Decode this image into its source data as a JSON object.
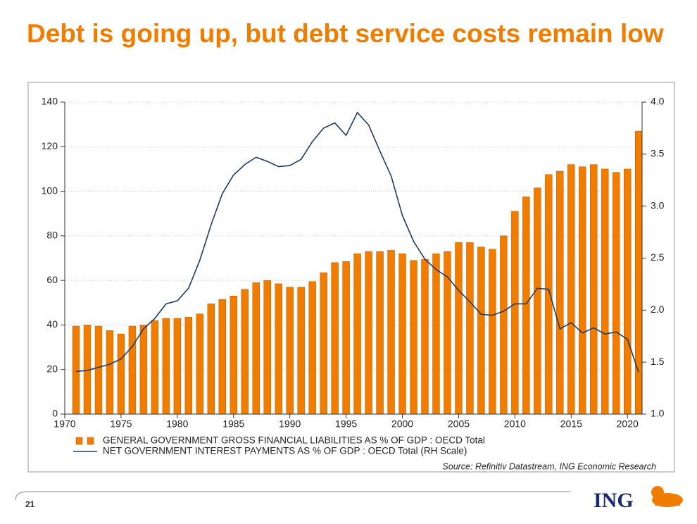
{
  "chart_data": {
    "type": "bar-line",
    "title": "Debt is going up, but debt service costs remain low",
    "source": "Source: Refinitiv Datastream, ING Economic Research",
    "x": [
      1971,
      1972,
      1973,
      1974,
      1975,
      1976,
      1977,
      1978,
      1979,
      1980,
      1981,
      1982,
      1983,
      1984,
      1985,
      1986,
      1987,
      1988,
      1989,
      1990,
      1991,
      1992,
      1993,
      1994,
      1995,
      1996,
      1997,
      1998,
      1999,
      2000,
      2001,
      2002,
      2003,
      2004,
      2005,
      2006,
      2007,
      2008,
      2009,
      2010,
      2011,
      2012,
      2013,
      2014,
      2015,
      2016,
      2017,
      2018,
      2019,
      2020,
      2021
    ],
    "series": [
      {
        "name": "GENERAL GOVERNMENT GROSS FINANCIAL LIABILITIES AS % OF GDP : OECD Total",
        "color": "#f07d00",
        "type": "bar",
        "values": [
          39.5,
          40,
          39.5,
          37.5,
          36,
          39.5,
          40,
          42,
          43,
          43,
          43.5,
          45,
          49.5,
          51.5,
          53,
          56,
          59,
          60,
          58.5,
          57,
          57,
          59.5,
          63.5,
          68,
          68.5,
          72,
          73,
          73,
          73.5,
          72,
          69,
          69.5,
          72,
          73,
          77,
          77,
          75,
          74,
          80,
          91,
          97.5,
          101.5,
          107.5,
          109,
          112,
          111,
          112,
          110,
          108.5,
          110,
          127
        ]
      },
      {
        "name": "NET GOVERNMENT INTEREST PAYMENTS AS % OF GDP : OECD Total (RH Scale)",
        "color": "#1f3b64",
        "type": "line",
        "axis": "y2",
        "values": [
          1.41,
          1.42,
          1.45,
          1.48,
          1.53,
          1.65,
          1.82,
          1.92,
          2.06,
          2.09,
          2.21,
          2.48,
          2.82,
          3.12,
          3.3,
          3.4,
          3.47,
          3.43,
          3.38,
          3.39,
          3.45,
          3.62,
          3.75,
          3.8,
          3.68,
          3.9,
          3.78,
          3.53,
          3.29,
          2.91,
          2.66,
          2.49,
          2.39,
          2.32,
          2.19,
          2.08,
          1.96,
          1.95,
          1.99,
          2.06,
          2.06,
          2.21,
          2.2,
          1.82,
          1.88,
          1.78,
          1.83,
          1.77,
          1.79,
          1.72,
          1.4
        ]
      }
    ],
    "xlim": [
      1970,
      2021.3
    ],
    "xticks": [
      1970,
      1975,
      1980,
      1985,
      1990,
      1995,
      2000,
      2005,
      2010,
      2015,
      2020
    ],
    "ylim": [
      0,
      140
    ],
    "yticks": [
      0,
      20,
      40,
      60,
      80,
      100,
      120,
      140
    ],
    "y2lim": [
      1,
      4
    ],
    "y2ticks": [
      {
        "value": 1,
        "label": "1.0"
      },
      {
        "value": 1.5,
        "label": "1.5"
      },
      {
        "value": 2,
        "label": "2.0"
      },
      {
        "value": 2.5,
        "label": "2.5"
      },
      {
        "value": 3,
        "label": "3.0"
      },
      {
        "value": 3.5,
        "label": "3.5"
      },
      {
        "value": 4,
        "label": "4.0"
      }
    ],
    "grid": true
  },
  "footer": {
    "page_number": "21",
    "logo": "ING"
  }
}
